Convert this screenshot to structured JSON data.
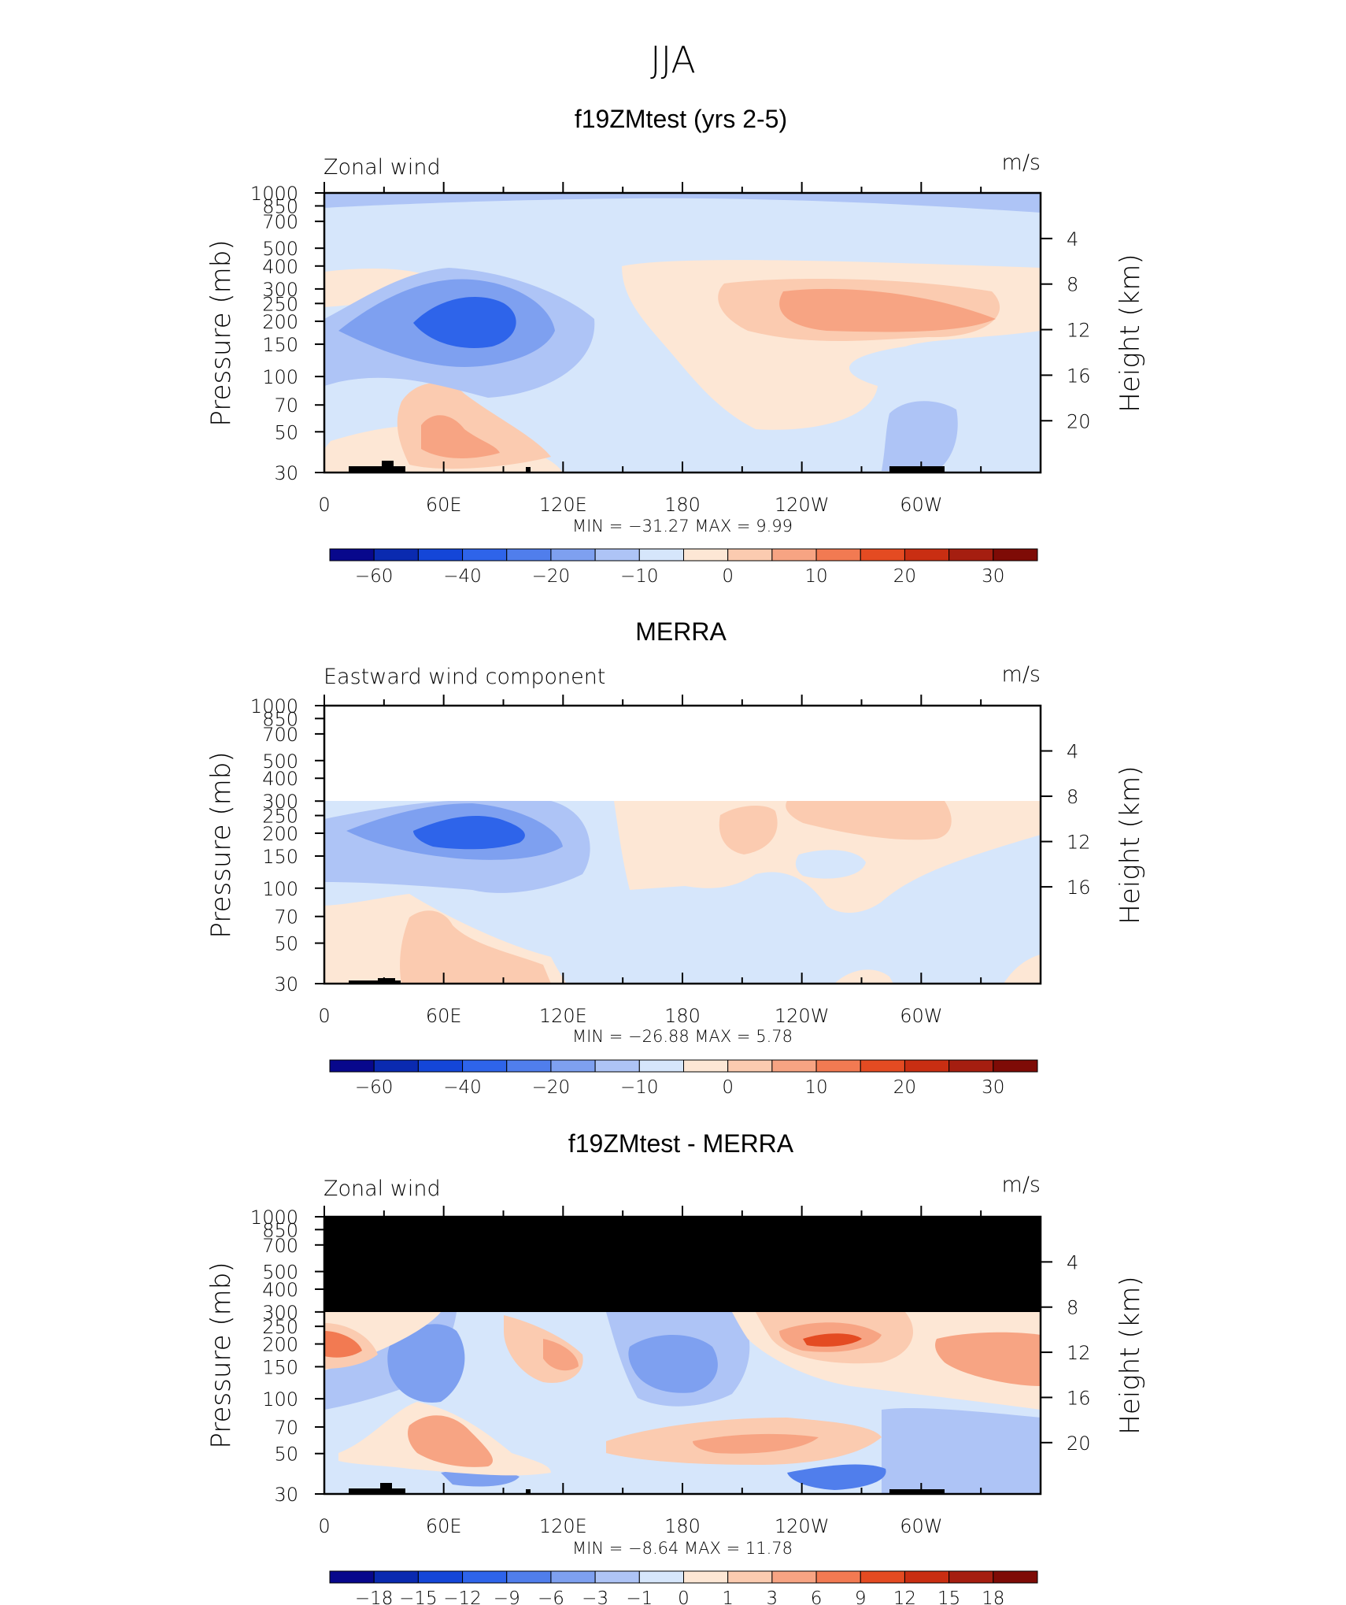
{
  "figure": {
    "title": "JJA"
  },
  "chart_data": [
    {
      "type": "heatmap",
      "title": "f19ZMtest (yrs 2-5)",
      "variable_label": "Zonal wind",
      "units_label": "m/s",
      "ylabel": "Pressure (mb)",
      "y2label": "Height (km)",
      "x_ticks": [
        "0",
        "60E",
        "120E",
        "180",
        "120W",
        "60W"
      ],
      "y_ticks": [
        "30",
        "50",
        "70",
        "100",
        "150",
        "200",
        "250",
        "300",
        "400",
        "500",
        "700",
        "850",
        "1000"
      ],
      "y2_ticks": [
        "20",
        "16",
        "12",
        "8",
        "4"
      ],
      "ylim": [
        1000,
        30
      ],
      "stats_label": "MIN = −31.27 MAX = 9.99",
      "min": -31.27,
      "max": 9.99,
      "colorbar": {
        "labels": [
          "−60",
          "−40",
          "−20",
          "−10",
          "0",
          "10",
          "20",
          "30"
        ],
        "colors": [
          "#08088c",
          "#0a2ab0",
          "#1446d8",
          "#2e64ea",
          "#507eec",
          "#7ea0f0",
          "#aec4f6",
          "#d6e6fb",
          "#fde7d5",
          "#fbcbb0",
          "#f7a483",
          "#f27a52",
          "#e44b22",
          "#c92e12",
          "#a51e10",
          "#7e0b06"
        ]
      }
    },
    {
      "type": "heatmap",
      "title": "MERRA",
      "variable_label": "Eastward wind component",
      "units_label": "m/s",
      "ylabel": "Pressure (mb)",
      "y2label": "Height (km)",
      "x_ticks": [
        "0",
        "60E",
        "120E",
        "180",
        "120W",
        "60W"
      ],
      "y_ticks": [
        "30",
        "50",
        "70",
        "100",
        "150",
        "200",
        "250",
        "300",
        "400",
        "500",
        "700",
        "850",
        "1000"
      ],
      "y2_ticks": [
        "16",
        "12",
        "8",
        "4"
      ],
      "ylim": [
        1000,
        30
      ],
      "stats_label": "MIN = −26.88 MAX = 5.78",
      "min": -26.88,
      "max": 5.78,
      "colorbar": {
        "labels": [
          "−60",
          "−40",
          "−20",
          "−10",
          "0",
          "10",
          "20",
          "30"
        ],
        "colors": [
          "#08088c",
          "#0a2ab0",
          "#1446d8",
          "#2e64ea",
          "#507eec",
          "#7ea0f0",
          "#aec4f6",
          "#d6e6fb",
          "#fde7d5",
          "#fbcbb0",
          "#f7a483",
          "#f27a52",
          "#e44b22",
          "#c92e12",
          "#a51e10",
          "#7e0b06"
        ]
      }
    },
    {
      "type": "heatmap",
      "title": "f19ZMtest - MERRA",
      "variable_label": "Zonal wind",
      "units_label": "m/s",
      "ylabel": "Pressure (mb)",
      "y2label": "Height (km)",
      "x_ticks": [
        "0",
        "60E",
        "120E",
        "180",
        "120W",
        "60W"
      ],
      "y_ticks": [
        "30",
        "50",
        "70",
        "100",
        "150",
        "200",
        "250",
        "300",
        "400",
        "500",
        "700",
        "850",
        "1000"
      ],
      "y2_ticks": [
        "20",
        "16",
        "12",
        "8",
        "4"
      ],
      "ylim": [
        1000,
        30
      ],
      "stats_label": "MIN = −8.64 MAX = 11.78",
      "min": -8.64,
      "max": 11.78,
      "colorbar": {
        "labels": [
          "−18",
          "−15",
          "−12",
          "−9",
          "−6",
          "−3",
          "−1",
          "0",
          "1",
          "3",
          "6",
          "9",
          "12",
          "15",
          "18"
        ],
        "colors": [
          "#08088c",
          "#0a2ab0",
          "#1446d8",
          "#2e64ea",
          "#507eec",
          "#7ea0f0",
          "#aec4f6",
          "#d6e6fb",
          "#fde7d5",
          "#fbcbb0",
          "#f7a483",
          "#f27a52",
          "#e44b22",
          "#c92e12",
          "#a51e10",
          "#7e0b06"
        ]
      }
    }
  ]
}
